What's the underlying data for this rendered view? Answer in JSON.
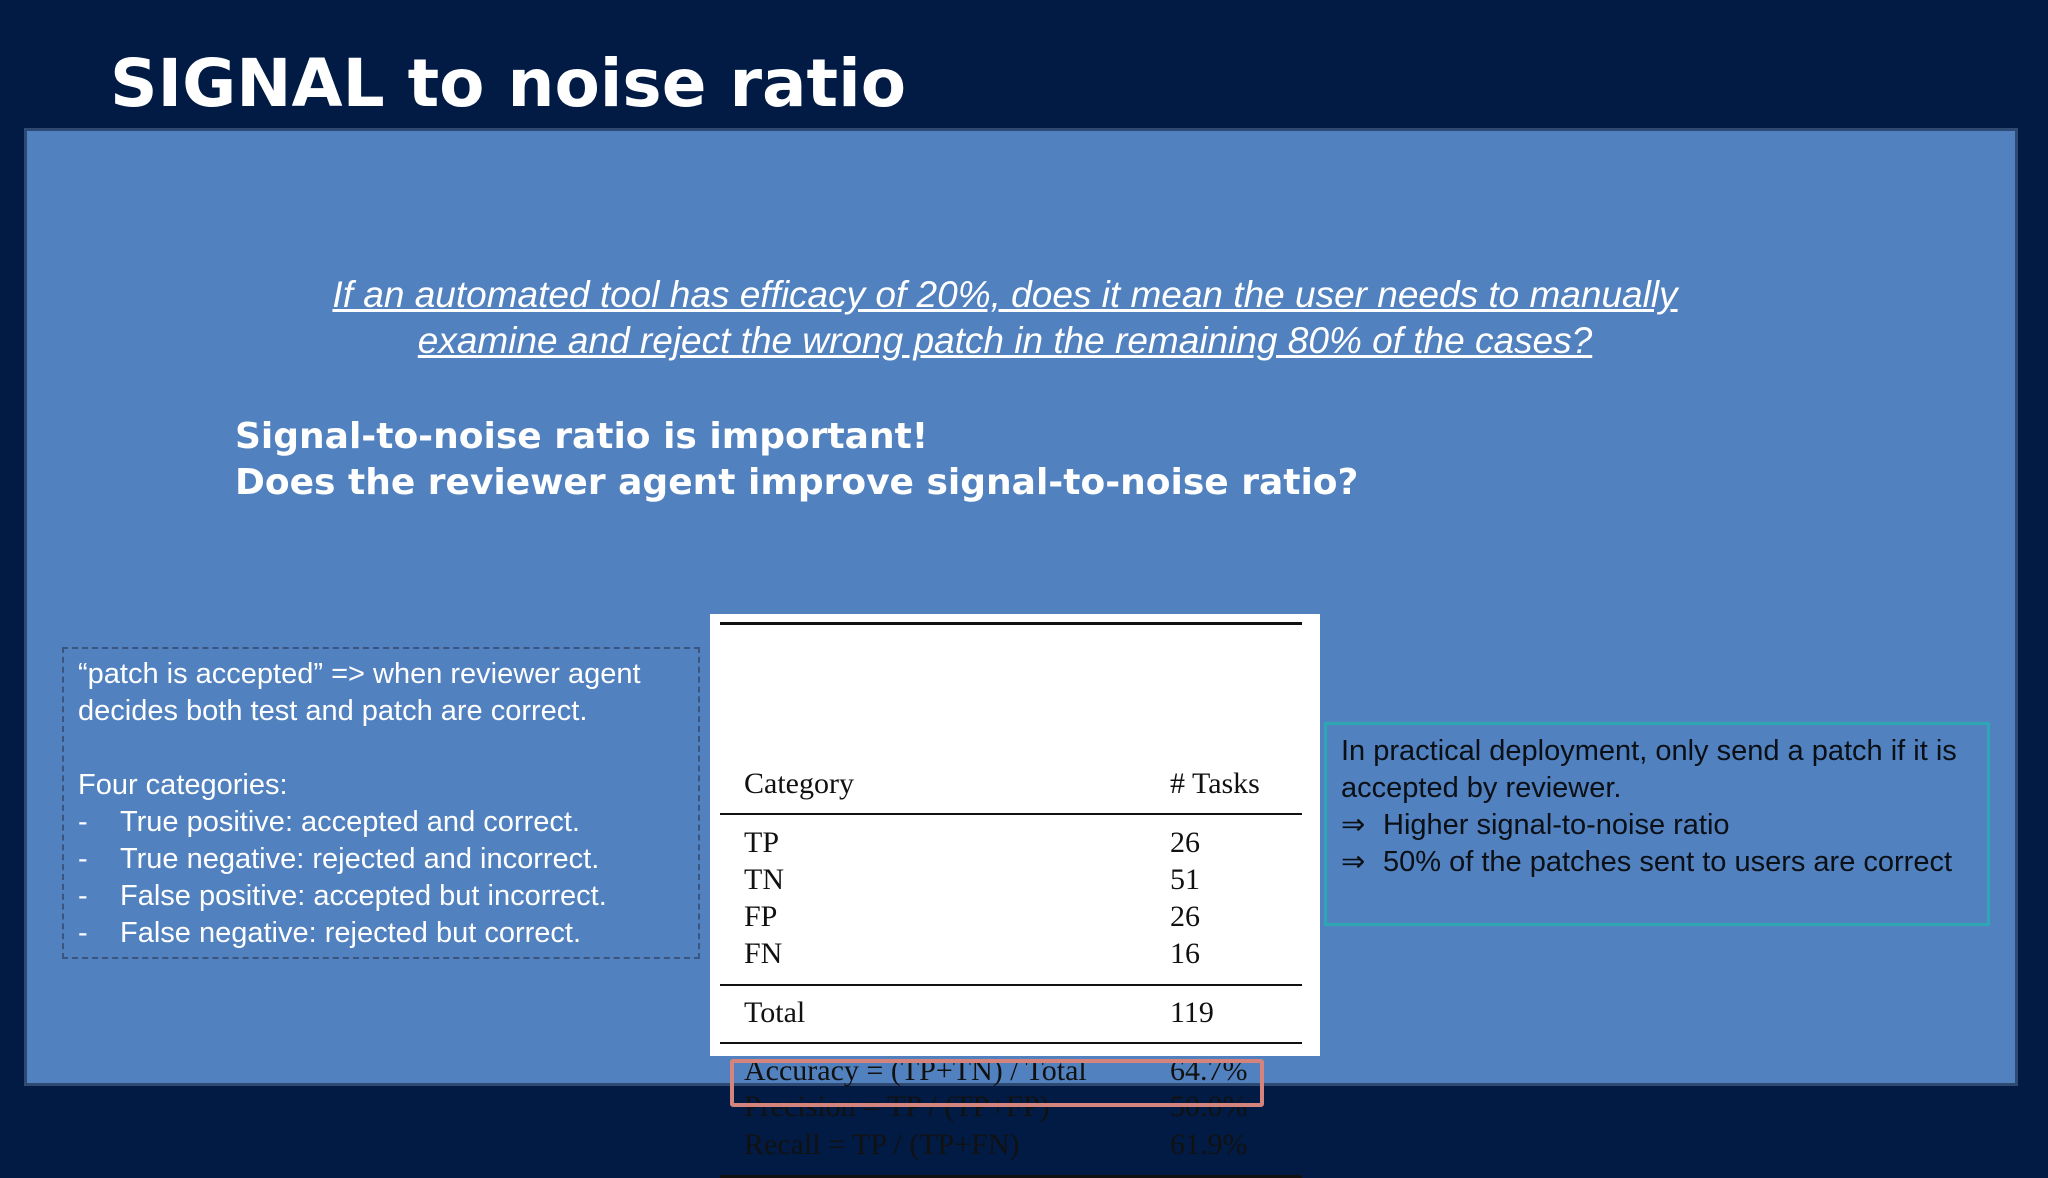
{
  "slide": {
    "title": "SIGNAL to noise ratio"
  },
  "question": {
    "line1": "If an automated tool has efficacy of 20%, does it mean the user needs to manually",
    "line2": "examine and reject the wrong patch in the remaining 80% of the cases?"
  },
  "emphasis": {
    "line1": "Signal-to-noise ratio is important!",
    "line2": "Does the reviewer agent improve signal-to-noise ratio?"
  },
  "definition_box": {
    "intro": "“patch is accepted” => when reviewer agent decides both test and patch are correct.",
    "heading": "Four categories:",
    "bullet_marker": "-",
    "bullets": [
      "True positive: accepted and correct.",
      "True negative: rejected and incorrect.",
      "False positive: accepted but incorrect.",
      "False negative: rejected but correct."
    ]
  },
  "table": {
    "header": {
      "category": "Category",
      "tasks": "# Tasks"
    },
    "rows": [
      {
        "category": "TP",
        "tasks": "26"
      },
      {
        "category": "TN",
        "tasks": "51"
      },
      {
        "category": "FP",
        "tasks": "26"
      },
      {
        "category": "FN",
        "tasks": "16"
      }
    ],
    "total": {
      "category": "Total",
      "tasks": "119"
    },
    "metrics": [
      {
        "category": "Accuracy = (TP+TN) / Total",
        "tasks": "64.7%"
      },
      {
        "category": "Precision = TP / (TP+FP)",
        "tasks": "50.0%"
      },
      {
        "category": "Recall = TP / (TP+FN)",
        "tasks": "61.9%"
      }
    ],
    "highlight_color": "#d4847d"
  },
  "conclusion_box": {
    "line1": "In practical deployment, only send a patch if it is accepted by reviewer.",
    "arrow": "⇒",
    "points": [
      "Higher signal-to-noise ratio",
      "50% of the patches sent to users are correct"
    ],
    "border_color": "#2ea6b4"
  },
  "colors": {
    "background": "#011b45",
    "panel": "#5181bf",
    "text": "#ffffff"
  }
}
